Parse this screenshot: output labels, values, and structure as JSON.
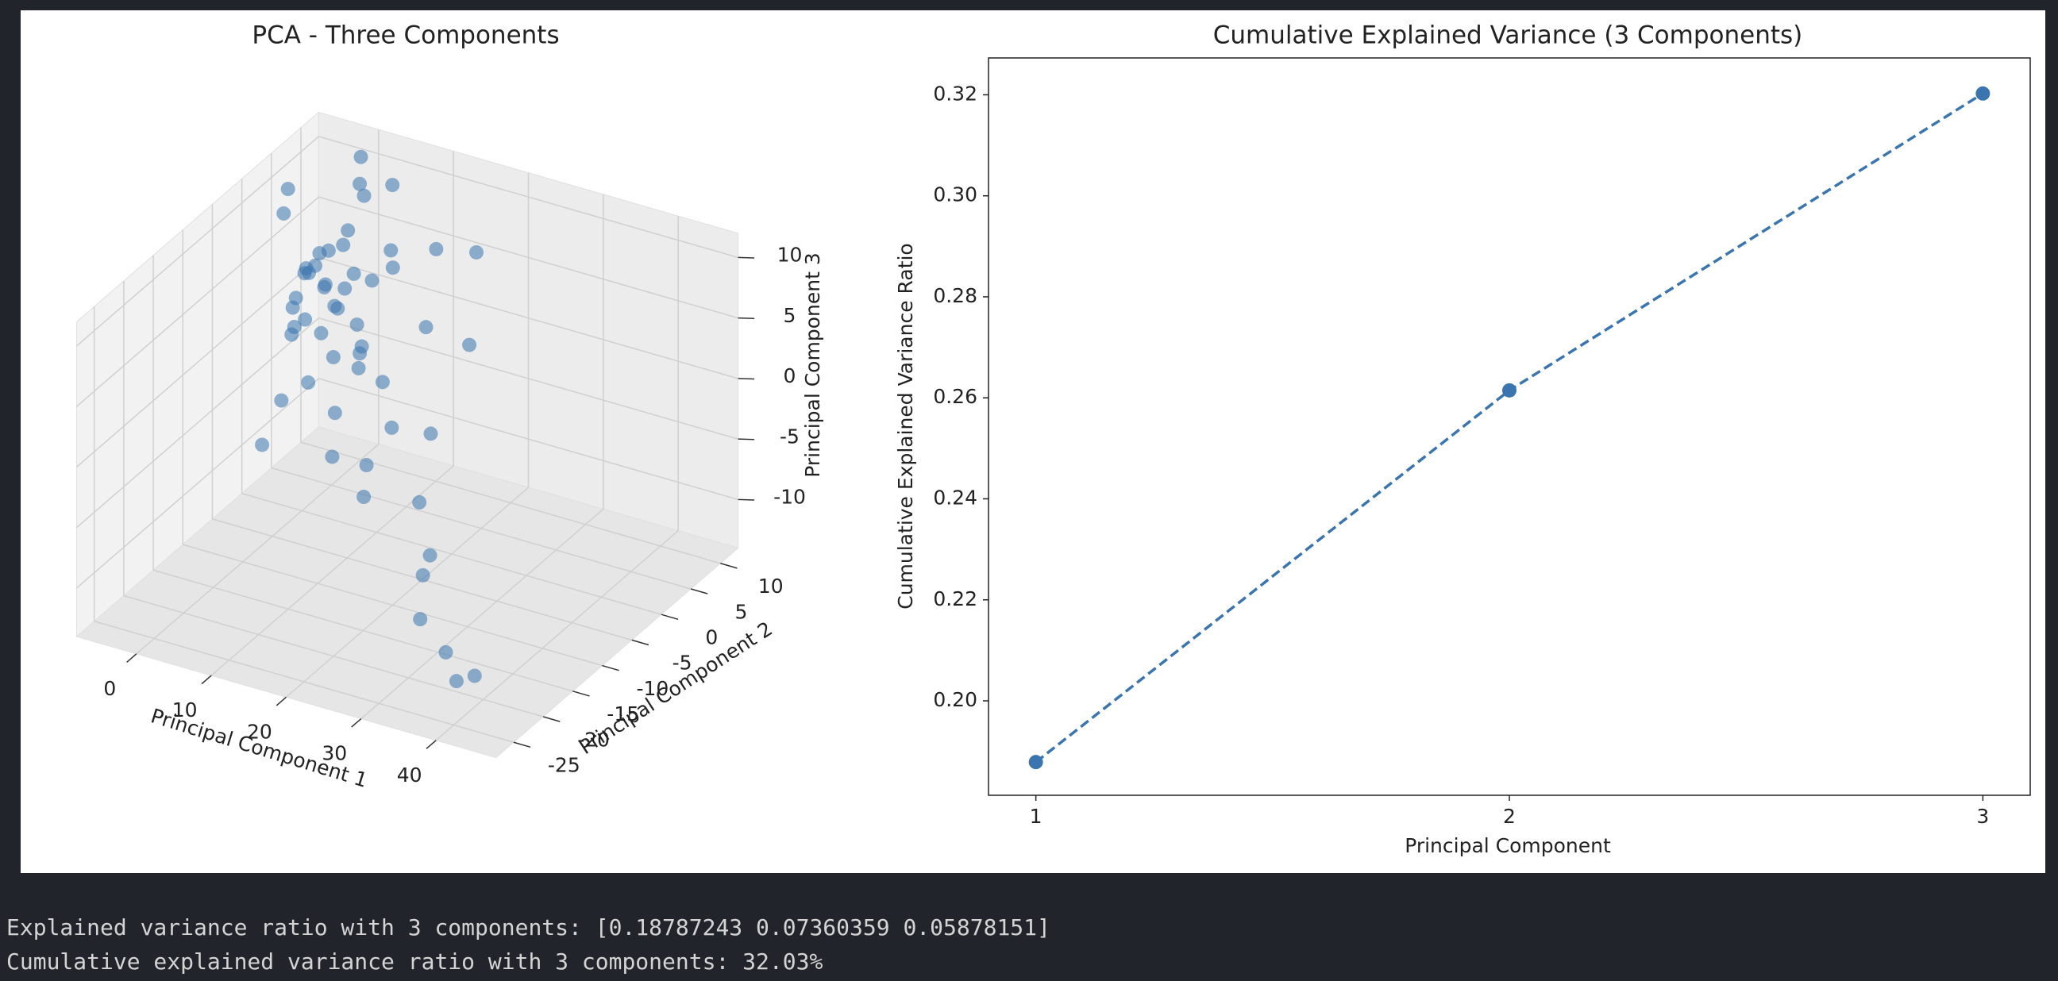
{
  "chart_data": [
    {
      "type": "scatter3d",
      "title": "PCA - Three Components",
      "xlabel": "Principal Component 1",
      "ylabel": "Principal Component 2",
      "zlabel": "Principal Component 3",
      "color": "#3b75af",
      "alpha": 0.55,
      "x": [
        -2,
        -1,
        0,
        1,
        2,
        3,
        -3,
        0,
        1,
        2,
        4,
        5,
        -1,
        0,
        2,
        3,
        1,
        -2,
        0,
        1,
        3,
        5,
        6,
        8,
        2,
        4,
        7,
        3,
        10,
        6,
        9,
        12,
        5,
        8,
        15,
        11,
        14,
        18,
        20,
        13,
        22,
        25,
        17,
        28,
        30,
        35,
        38,
        42,
        -4,
        -5,
        0,
        2,
        4,
        1,
        3
      ],
      "y": [
        3,
        2,
        4,
        1,
        3,
        0,
        5,
        -1,
        6,
        2,
        1,
        3,
        0,
        7,
        -2,
        4,
        2,
        1,
        3,
        -3,
        5,
        -1,
        2,
        0,
        8,
        -4,
        3,
        6,
        1,
        -2,
        4,
        0,
        9,
        -5,
        2,
        -3,
        5,
        -1,
        3,
        -6,
        -8,
        -10,
        8,
        -15,
        -18,
        -20,
        -22,
        -24,
        2,
        4,
        10,
        -6,
        10,
        -8,
        6
      ],
      "z": [
        4,
        5,
        3,
        6,
        2,
        5,
        3,
        4,
        2,
        7,
        3,
        1,
        1,
        5,
        3,
        8,
        0,
        2,
        6,
        2,
        4,
        0,
        -2,
        1,
        9,
        -1,
        5,
        -3,
        -2,
        -4,
        6,
        -5,
        10,
        -6,
        3,
        -7,
        8,
        -4,
        2,
        -8,
        -6,
        -9,
        7,
        -8,
        -10,
        -11,
        -12,
        -10,
        9,
        10,
        11,
        -2,
        4,
        -5,
        11
      ],
      "xlim": [
        -8,
        48
      ],
      "ylim": [
        -28,
        13
      ],
      "zlim": [
        -14,
        12
      ],
      "xticks": [
        0,
        10,
        20,
        30,
        40
      ],
      "yticks": [
        -25,
        -20,
        -15,
        -10,
        -5,
        0,
        5,
        10
      ],
      "zticks": [
        -10,
        -5,
        0,
        5,
        10
      ],
      "grid": true
    },
    {
      "type": "line",
      "title": "Cumulative Explained Variance (3 Components)",
      "xlabel": "Principal Component",
      "ylabel": "Cumulative Explained Variance Ratio",
      "x": [
        1,
        2,
        3
      ],
      "values": [
        0.18787243,
        0.26147602,
        0.32025753
      ],
      "color": "#3b75af",
      "line_style": "dashed",
      "marker": "o",
      "xlim": [
        0.9,
        3.1
      ],
      "ylim": [
        0.1813,
        0.3273
      ],
      "xticks": [
        1,
        2,
        3
      ],
      "yticks": [
        {
          "value": 0.2,
          "label": "0.20"
        },
        0.22,
        0.24,
        0.26,
        0.28,
        {
          "value": 0.3,
          "label": "0.30"
        },
        0.32
      ],
      "grid": false
    }
  ],
  "output": {
    "lines": [
      "Explained variance ratio with 3 components: [0.18787243 0.07360359 0.05878151]",
      "Cumulative explained variance ratio with 3 components: 32.03%"
    ]
  }
}
